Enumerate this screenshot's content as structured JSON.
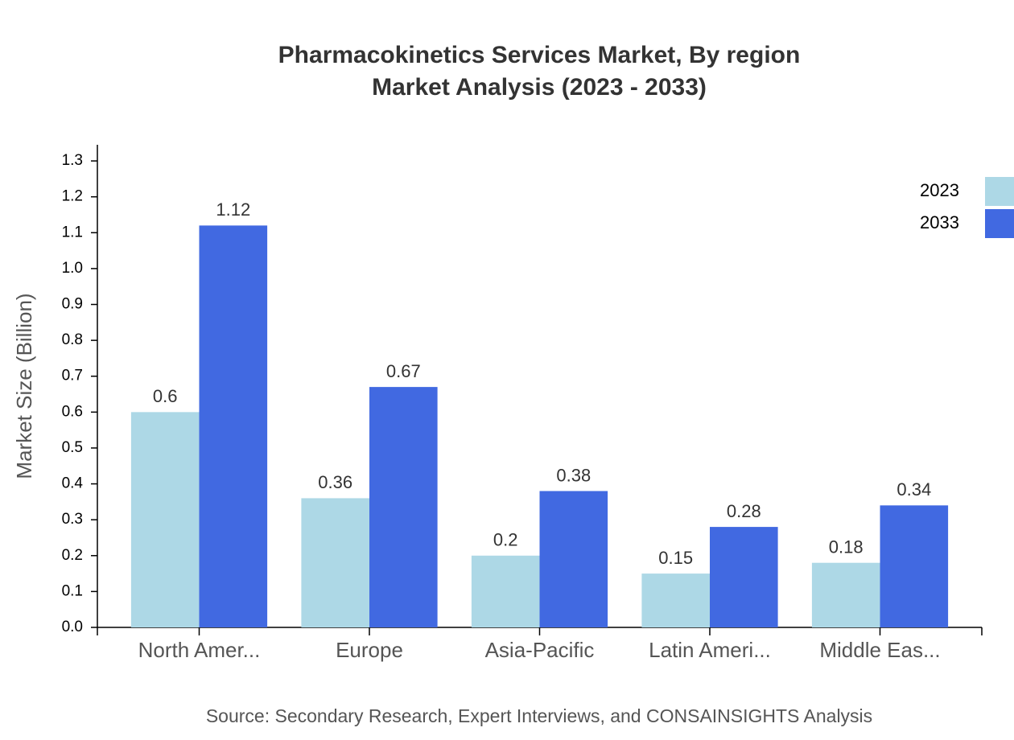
{
  "chart_data": {
    "type": "bar",
    "title": "Pharmacokinetics Services Market, By region",
    "subtitle": "Market Analysis (2023 - 2033)",
    "y_label": "Market Size (Billion)",
    "source": "Source: Secondary Research, Expert Interviews, and CONSAINSIGHTS Analysis",
    "categories": [
      "North Amer...",
      "Europe",
      "Asia-Pacific",
      "Latin Ameri...",
      "Middle Eas..."
    ],
    "series": [
      {
        "name": "2023",
        "color": "#add8e6",
        "values": [
          0.6,
          0.36,
          0.2,
          0.15,
          0.18
        ]
      },
      {
        "name": "2033",
        "color": "#4169e1",
        "values": [
          1.12,
          0.67,
          0.38,
          0.28,
          0.34
        ]
      }
    ],
    "ylim": [
      0,
      1.345
    ],
    "yticks": [
      {
        "value": 0,
        "label": "0.0"
      },
      0.1,
      0.2,
      0.3,
      0.4,
      0.5,
      0.6,
      0.7,
      0.8,
      0.9,
      {
        "value": 1,
        "label": "1.0"
      },
      1.1,
      1.2,
      1.3
    ],
    "grid": false,
    "legend": "top-right"
  }
}
